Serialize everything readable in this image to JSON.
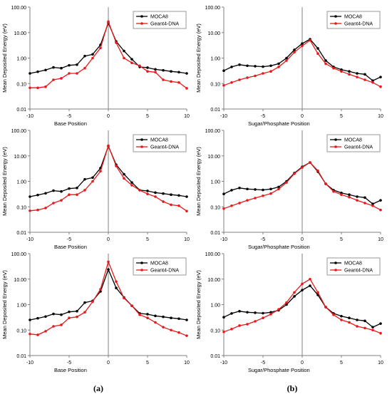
{
  "columns": [
    {
      "label": "(a)"
    },
    {
      "label": "(b)"
    }
  ],
  "chart_data": [
    {
      "type": "line",
      "ylabel": "Mean Deposited Energy (eV)",
      "xlabel": "Base Position",
      "xlim": [
        -10,
        10
      ],
      "ylim": [
        0.01,
        100
      ],
      "yscale": "log",
      "xticks": [
        "-10",
        "-5",
        "0",
        "5",
        "10"
      ],
      "yticks": [
        "0.01",
        "0.10",
        "1.00",
        "10.00",
        "100.00"
      ],
      "legend": "top-right",
      "grid": false,
      "x": [
        -10,
        -9,
        -8,
        -7,
        -6,
        -5,
        -4,
        -3,
        -2,
        -1,
        0,
        1,
        2,
        3,
        4,
        5,
        6,
        7,
        8,
        9,
        10
      ],
      "series": [
        {
          "name": "MOCA8",
          "color": "#000000",
          "values": [
            0.25,
            0.29,
            0.34,
            0.43,
            0.4,
            0.52,
            0.55,
            1.2,
            1.4,
            3.3,
            24.0,
            4.5,
            1.9,
            0.9,
            0.45,
            0.42,
            0.36,
            0.33,
            0.3,
            0.28,
            0.25
          ]
        },
        {
          "name": "Geant4-DNA",
          "color": "#e8191c",
          "values": [
            0.068,
            0.068,
            0.075,
            0.14,
            0.16,
            0.25,
            0.25,
            0.4,
            1.0,
            2.5,
            27.0,
            4.0,
            1.0,
            0.65,
            0.5,
            0.3,
            0.28,
            0.14,
            0.12,
            0.11,
            0.065
          ]
        }
      ]
    },
    {
      "type": "line",
      "ylabel": "Mean Deposited Energy (eV)",
      "xlabel": "Sugar/Phosphate Position",
      "xlim": [
        -10,
        10
      ],
      "ylim": [
        0.01,
        100
      ],
      "yscale": "log",
      "xticks": [
        "-10",
        "-5",
        "0",
        "5",
        "10"
      ],
      "yticks": [
        "0.01",
        "0.10",
        "1.00",
        "10.00",
        "100.00"
      ],
      "legend": "top-right",
      "grid": false,
      "x": [
        -10,
        -9,
        -8,
        -7,
        -6,
        -5,
        -4,
        -3,
        -2,
        -1,
        0,
        1,
        2,
        3,
        4,
        5,
        6,
        7,
        8,
        9,
        10
      ],
      "series": [
        {
          "name": "MOCA8",
          "color": "#000000",
          "values": [
            0.32,
            0.45,
            0.55,
            0.5,
            0.48,
            0.46,
            0.5,
            0.6,
            1.0,
            2.1,
            3.7,
            5.5,
            2.4,
            0.8,
            0.45,
            0.35,
            0.3,
            0.25,
            0.23,
            0.13,
            0.18
          ]
        },
        {
          "name": "Geant4-DNA",
          "color": "#e8191c",
          "values": [
            0.085,
            0.11,
            0.14,
            0.17,
            0.2,
            0.25,
            0.3,
            0.45,
            0.8,
            1.7,
            3.0,
            5.0,
            1.5,
            0.6,
            0.4,
            0.3,
            0.23,
            0.18,
            0.14,
            0.11,
            0.075
          ]
        }
      ]
    },
    {
      "type": "line",
      "ylabel": "Mean Deposited Energy (eV)",
      "xlabel": "Base Position",
      "xlim": [
        -10,
        10
      ],
      "ylim": [
        0.01,
        100
      ],
      "yscale": "log",
      "xticks": [
        "-10",
        "-5",
        "0",
        "5",
        "10"
      ],
      "yticks": [
        "0.01",
        "0.10",
        "1.00",
        "10.00",
        "100.00"
      ],
      "legend": "top-right",
      "grid": false,
      "x": [
        -10,
        -9,
        -8,
        -7,
        -6,
        -5,
        -4,
        -3,
        -2,
        -1,
        0,
        1,
        2,
        3,
        4,
        5,
        6,
        7,
        8,
        9,
        10
      ],
      "series": [
        {
          "name": "MOCA8",
          "color": "#000000",
          "values": [
            0.25,
            0.29,
            0.34,
            0.43,
            0.4,
            0.52,
            0.55,
            1.2,
            1.4,
            3.3,
            24.0,
            4.5,
            1.9,
            0.9,
            0.45,
            0.42,
            0.36,
            0.33,
            0.3,
            0.28,
            0.25
          ]
        },
        {
          "name": "Geant4-DNA",
          "color": "#e8191c",
          "values": [
            0.07,
            0.075,
            0.09,
            0.14,
            0.18,
            0.3,
            0.3,
            0.45,
            1.0,
            2.5,
            25.0,
            4.0,
            1.3,
            0.7,
            0.45,
            0.32,
            0.25,
            0.16,
            0.12,
            0.11,
            0.068
          ]
        }
      ]
    },
    {
      "type": "line",
      "ylabel": "Mean Deposited Energy (eV)",
      "xlabel": "Sugar/Phosphate Position",
      "xlim": [
        -10,
        10
      ],
      "ylim": [
        0.01,
        100
      ],
      "yscale": "log",
      "xticks": [
        "-10",
        "-5",
        "0",
        "5",
        "10"
      ],
      "yticks": [
        "0.01",
        "0.10",
        "1.00",
        "10.00",
        "100.00"
      ],
      "legend": "top-right",
      "grid": false,
      "x": [
        -10,
        -9,
        -8,
        -7,
        -6,
        -5,
        -4,
        -3,
        -2,
        -1,
        0,
        1,
        2,
        3,
        4,
        5,
        6,
        7,
        8,
        9,
        10
      ],
      "series": [
        {
          "name": "MOCA8",
          "color": "#000000",
          "values": [
            0.32,
            0.45,
            0.55,
            0.5,
            0.48,
            0.46,
            0.5,
            0.6,
            1.0,
            2.1,
            3.7,
            5.5,
            2.4,
            0.8,
            0.45,
            0.35,
            0.3,
            0.25,
            0.23,
            0.13,
            0.18
          ]
        },
        {
          "name": "Geant4-DNA",
          "color": "#e8191c",
          "values": [
            0.085,
            0.11,
            0.14,
            0.18,
            0.22,
            0.27,
            0.33,
            0.5,
            0.9,
            2.0,
            3.5,
            5.5,
            2.6,
            0.8,
            0.4,
            0.3,
            0.24,
            0.18,
            0.14,
            0.11,
            0.075
          ]
        }
      ]
    },
    {
      "type": "line",
      "ylabel": "Mean Deposited Energy (eV)",
      "xlabel": "Base Position",
      "xlim": [
        -10,
        10
      ],
      "ylim": [
        0.01,
        100
      ],
      "yscale": "log",
      "xticks": [
        "-10",
        "-5",
        "0",
        "5",
        "10"
      ],
      "yticks": [
        "0.01",
        "0.10",
        "1.00",
        "10.00",
        "100.00"
      ],
      "legend": "top-right",
      "grid": false,
      "x": [
        -10,
        -9,
        -8,
        -7,
        -6,
        -5,
        -4,
        -3,
        -2,
        -1,
        0,
        1,
        2,
        3,
        4,
        5,
        6,
        7,
        8,
        9,
        10
      ],
      "series": [
        {
          "name": "MOCA8",
          "color": "#000000",
          "values": [
            0.25,
            0.29,
            0.34,
            0.43,
            0.4,
            0.52,
            0.55,
            1.2,
            1.4,
            3.3,
            24.0,
            4.5,
            1.9,
            0.9,
            0.45,
            0.42,
            0.36,
            0.33,
            0.3,
            0.28,
            0.25
          ]
        },
        {
          "name": "Geant4-DNA",
          "color": "#e8191c",
          "values": [
            0.07,
            0.065,
            0.09,
            0.14,
            0.16,
            0.3,
            0.33,
            0.5,
            1.3,
            4.0,
            48.0,
            8.0,
            1.8,
            0.9,
            0.4,
            0.3,
            0.2,
            0.13,
            0.1,
            0.08,
            0.06
          ]
        }
      ]
    },
    {
      "type": "line",
      "ylabel": "Mean Deposited Energy (eV)",
      "xlabel": "Sugar/Phosphate Position",
      "xlim": [
        -10,
        10
      ],
      "ylim": [
        0.01,
        100
      ],
      "yscale": "log",
      "xticks": [
        "-10",
        "-5",
        "0",
        "5",
        "10"
      ],
      "yticks": [
        "0.01",
        "0.10",
        "1.00",
        "10.00",
        "100.00"
      ],
      "legend": "top-right",
      "grid": false,
      "x": [
        -10,
        -9,
        -8,
        -7,
        -6,
        -5,
        -4,
        -3,
        -2,
        -1,
        0,
        1,
        2,
        3,
        4,
        5,
        6,
        7,
        8,
        9,
        10
      ],
      "series": [
        {
          "name": "MOCA8",
          "color": "#000000",
          "values": [
            0.32,
            0.45,
            0.55,
            0.5,
            0.48,
            0.46,
            0.5,
            0.6,
            1.0,
            2.1,
            3.7,
            5.5,
            2.4,
            0.8,
            0.45,
            0.35,
            0.3,
            0.25,
            0.23,
            0.13,
            0.18
          ]
        },
        {
          "name": "Geant4-DNA",
          "color": "#e8191c",
          "values": [
            0.085,
            0.11,
            0.15,
            0.17,
            0.22,
            0.3,
            0.42,
            0.65,
            1.2,
            3.0,
            6.5,
            10.0,
            3.0,
            0.8,
            0.4,
            0.25,
            0.2,
            0.14,
            0.12,
            0.1,
            0.075
          ]
        }
      ]
    }
  ]
}
